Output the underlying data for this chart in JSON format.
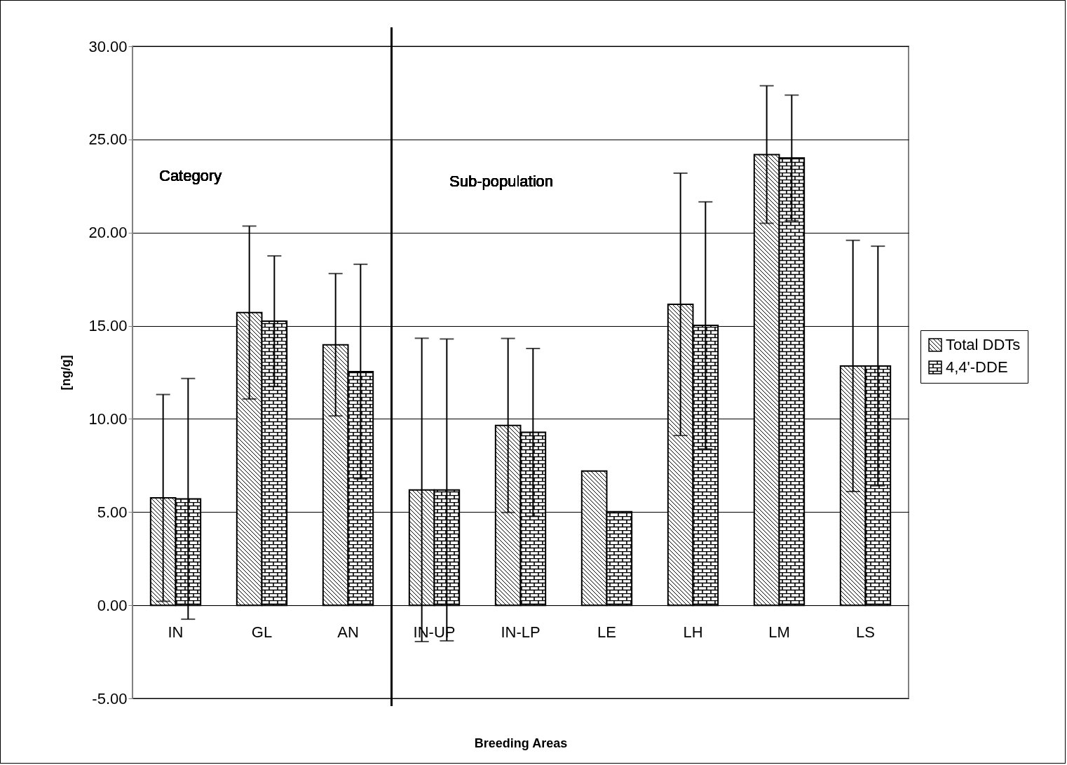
{
  "chart_data": {
    "type": "bar",
    "xlabel": "Breeding Areas",
    "ylabel": "[ng/g]",
    "categories": [
      "IN",
      "GL",
      "AN",
      "IN-UP",
      "IN-LP",
      "LE",
      "LH",
      "LM",
      "LS"
    ],
    "series": [
      {
        "name": "Total DDTs",
        "color": "#000000",
        "values": [
          5.76,
          15.71,
          13.98,
          6.19,
          9.65,
          7.2,
          16.15,
          24.19,
          12.84
        ],
        "errors": [
          5.55,
          4.64,
          3.82,
          8.14,
          4.67,
          null,
          7.04,
          3.69,
          6.74
        ]
      },
      {
        "name": "4,4'-DDE",
        "color": "#000000",
        "values": [
          5.71,
          15.25,
          12.54,
          6.19,
          9.28,
          5.02,
          15.02,
          24.01,
          12.84
        ],
        "errors": [
          6.46,
          3.5,
          5.76,
          8.1,
          4.5,
          null,
          6.63,
          3.37,
          6.43
        ]
      }
    ],
    "ylim": [
      -5,
      30
    ],
    "yticks": [
      {
        "value": -5,
        "label": "-5.00"
      },
      {
        "value": 0,
        "label": "0.00"
      },
      {
        "value": 5,
        "label": "5.00"
      },
      {
        "value": 10,
        "label": "10.00"
      },
      {
        "value": 15,
        "label": "15.00"
      },
      {
        "value": 20,
        "label": "20.00"
      },
      {
        "value": 25,
        "label": "25.00"
      },
      {
        "value": 30,
        "label": "30.00"
      }
    ],
    "annotations": [
      "Category",
      "Sub-population"
    ],
    "grid": "y",
    "legend": "right"
  }
}
